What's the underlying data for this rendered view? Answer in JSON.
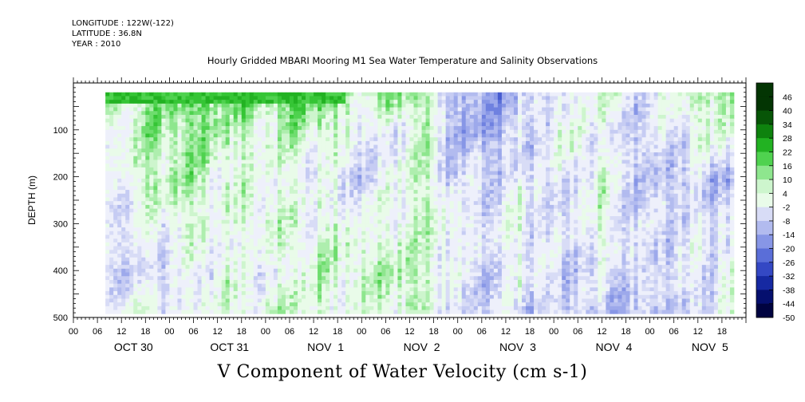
{
  "header": {
    "longitude": "LONGITUDE : 122W(-122)",
    "latitude": "LATITUDE : 36.8N",
    "year": "YEAR : 2010"
  },
  "title": "Hourly Gridded MBARI Mooring M1 Sea Water Temperature and Salinity Observations",
  "bottom_label": "V Component of Water Velocity (cm s-1)",
  "chart_data": {
    "type": "heatmap",
    "variable": "V Component of Water Velocity (cm s-1)",
    "ylabel": "DEPTH (m)",
    "y_axis": {
      "ticks": [
        100,
        200,
        300,
        400,
        500
      ],
      "range": [
        0,
        500
      ],
      "inverted": true
    },
    "x_axis": {
      "hour_tick_labels": [
        "00",
        "06",
        "12",
        "18",
        "00",
        "06",
        "12",
        "18",
        "00",
        "06",
        "12",
        "18",
        "00",
        "06",
        "12",
        "18",
        "00",
        "06",
        "12",
        "18",
        "00",
        "06",
        "12",
        "18",
        "00",
        "06",
        "12",
        "18"
      ],
      "day_labels": [
        "OCT 30",
        "OCT 31",
        "NOV  1",
        "NOV  2",
        "NOV  3",
        "NOV  4",
        "NOV  5"
      ],
      "range_hours": [
        -6,
        162
      ],
      "data_start_hour": 2,
      "data_end_hour": 159
    },
    "depth_range_of_data": [
      20,
      488
    ],
    "colorbar": {
      "levels": [
        -50,
        -44,
        -38,
        -32,
        -26,
        -20,
        -14,
        -8,
        -2,
        4,
        10,
        16,
        22,
        28,
        34,
        40,
        46
      ],
      "labels": [
        "46",
        "40",
        "34",
        "28",
        "22",
        "16",
        "10",
        "4",
        "-2",
        "-8",
        "-14",
        "-20",
        "-26",
        "-32",
        "-38",
        "-44",
        "-50"
      ]
    },
    "colors": {
      "neg": [
        "#eef0fb",
        "#d8dcf6",
        "#c6ccf3",
        "#b2bbef",
        "#9da9eb",
        "#8796e6",
        "#6f81e0",
        "#5a6ed8",
        "#465bd0",
        "#3448c4",
        "#2338b5",
        "#1629a2",
        "#0c1c8a",
        "#050f6e",
        "#020755",
        "#000340"
      ],
      "pos": [
        "#e9fbe9",
        "#cdf5cd",
        "#aeeeae",
        "#8ee68e",
        "#6edd6e",
        "#4fd24f",
        "#35c535",
        "#22b222",
        "#169a16",
        "#0e820e",
        "#0a6a0a",
        "#075507",
        "#054405",
        "#033503"
      ],
      "velocity_field_description": "",
      "surface_layer": "#2fc030"
    },
    "field": {
      "time_knots": [
        2,
        10,
        20,
        30,
        40,
        50,
        60,
        70,
        80,
        88,
        95,
        105,
        115,
        125,
        135,
        145,
        152,
        159
      ],
      "depth_knots": [
        20,
        100,
        200,
        300,
        400,
        488
      ],
      "v_values": [
        [
          14,
          4,
          -2,
          2,
          -4,
          6
        ],
        [
          10,
          8,
          6,
          -4,
          -8,
          2
        ],
        [
          18,
          12,
          10,
          4,
          -6,
          -2
        ],
        [
          20,
          12,
          6,
          2,
          4,
          4
        ],
        [
          16,
          4,
          2,
          6,
          -4,
          6
        ],
        [
          22,
          10,
          2,
          4,
          6,
          8
        ],
        [
          12,
          6,
          -4,
          4,
          8,
          2
        ],
        [
          10,
          -8,
          -6,
          2,
          8,
          4
        ],
        [
          16,
          8,
          10,
          6,
          10,
          8
        ],
        [
          -12,
          -10,
          -8,
          4,
          -2,
          -6
        ],
        [
          -16,
          -14,
          -6,
          -4,
          -8,
          -6
        ],
        [
          -10,
          -8,
          -2,
          4,
          2,
          -4
        ],
        [
          -4,
          4,
          -6,
          -8,
          -6,
          -8
        ],
        [
          6,
          -2,
          4,
          4,
          -6,
          -10
        ],
        [
          -4,
          -6,
          -8,
          -6,
          -4,
          -10
        ],
        [
          6,
          -2,
          -8,
          -4,
          -6,
          -6
        ],
        [
          8,
          4,
          -10,
          -6,
          -4,
          -8
        ],
        [
          22,
          4,
          -8,
          -4,
          6,
          6
        ]
      ]
    }
  }
}
